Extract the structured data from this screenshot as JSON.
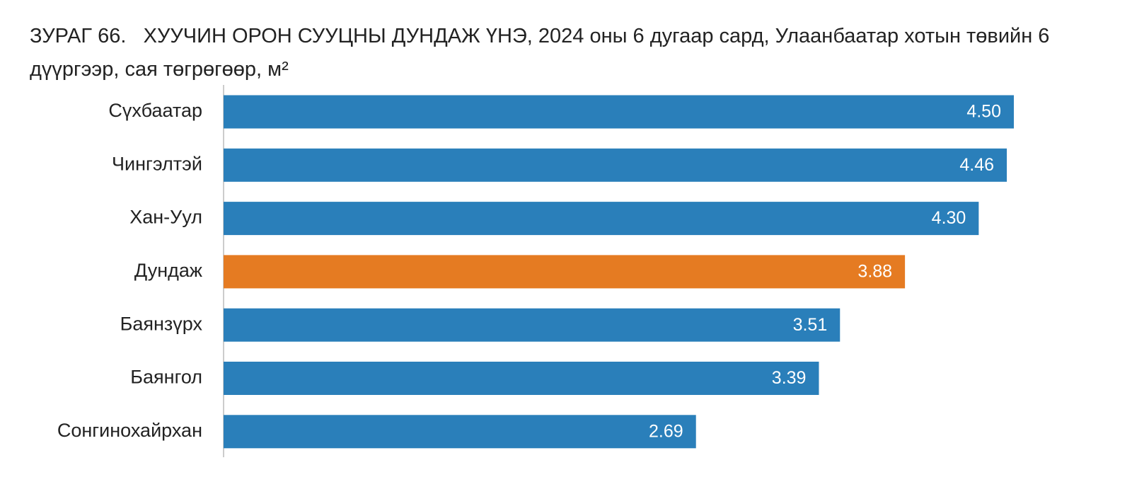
{
  "chart_data": {
    "type": "barh",
    "title": "ЗУРАГ 66.   ХУУЧИН ОРОН СУУЦНЫ ДУНДАЖ ҮНЭ, 2024 оны 6 дугаар сард, Улаанбаатар хотын төвийн 6 дүүргээр, сая төгрөгөөр, м²",
    "categories": [
      "Сүхбаатар",
      "Чингэлтэй",
      "Хан-Уул",
      "Дундаж",
      "Баянзүрх",
      "Баянгол",
      "Сонгинохайрхан"
    ],
    "values": [
      4.5,
      4.46,
      4.3,
      3.88,
      3.51,
      3.39,
      2.69
    ],
    "value_labels": [
      "4.50",
      "4.46",
      "4.30",
      "3.88",
      "3.51",
      "3.39",
      "2.69"
    ],
    "colors": [
      "#2a7fba",
      "#2a7fba",
      "#2a7fba",
      "#e57b22",
      "#2a7fba",
      "#2a7fba",
      "#2a7fba"
    ]
  }
}
